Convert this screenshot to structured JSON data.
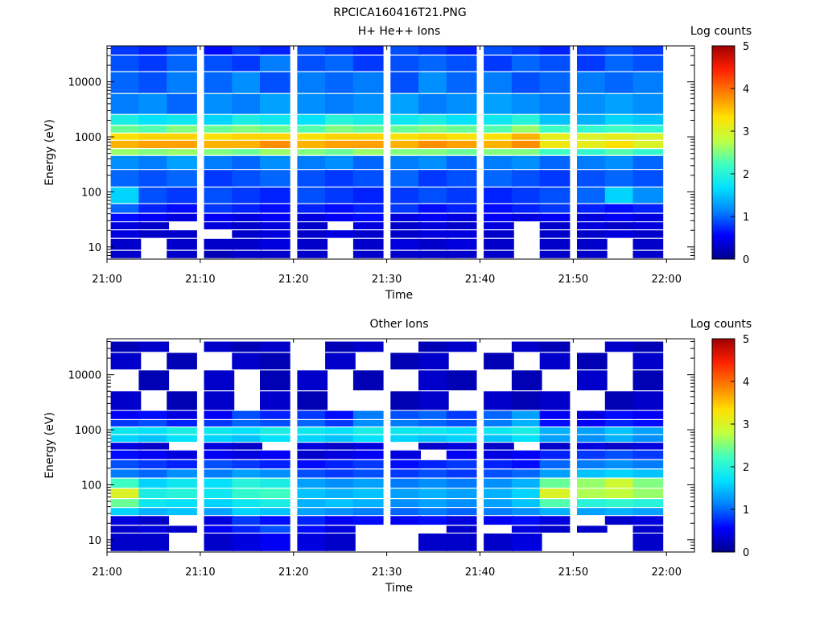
{
  "figure": {
    "title": "RPCICA160416T21.PNG"
  },
  "palette": [
    "#00008c",
    "#0000ff",
    "#0080ff",
    "#00e0ff",
    "#40ffc0",
    "#c0ff40",
    "#ffe000",
    "#ff8000",
    "#ff2000",
    "#a00000"
  ],
  "chart_data": [
    {
      "type": "heatmap",
      "title": "H+ He++ Ions",
      "xlabel": "Time",
      "ylabel": "Energy (eV)",
      "colorbar_label": "Log counts",
      "colorbar_ticks": [
        "0",
        "1",
        "2",
        "3",
        "4",
        "5"
      ],
      "color_range": [
        0,
        5
      ],
      "y_scale": "log",
      "y_range_eV": [
        6,
        45000
      ],
      "x_range": [
        "21:00",
        "22:03"
      ],
      "x_ticks": [
        "21:00",
        "21:10",
        "21:20",
        "21:30",
        "21:40",
        "21:50",
        "22:00"
      ],
      "y_ticks": [
        "10",
        "100",
        "1000",
        "10000"
      ],
      "time_bins": [
        "21:02",
        "21:05",
        "21:08",
        "21:12",
        "21:15",
        "21:18",
        "21:22",
        "21:25",
        "21:28",
        "21:32",
        "21:35",
        "21:38",
        "21:42",
        "21:45",
        "21:48",
        "21:52",
        "21:55",
        "21:58"
      ],
      "energy_bands": [
        {
          "e_low": 30000,
          "e_high": 45000,
          "log_counts": [
            0.8,
            0.7,
            0.9,
            0.6,
            0.8,
            0.7,
            0.9,
            0.8,
            0.7,
            0.9,
            0.8,
            0.7,
            0.9,
            0.8,
            0.7,
            0.8,
            0.9,
            0.8
          ]
        },
        {
          "e_low": 15000,
          "e_high": 30000,
          "log_counts": [
            0.9,
            0.8,
            1.0,
            0.9,
            0.8,
            1.1,
            0.9,
            1.0,
            0.8,
            0.9,
            1.0,
            0.9,
            0.8,
            1.0,
            0.9,
            0.8,
            1.0,
            0.9
          ]
        },
        {
          "e_low": 6000,
          "e_high": 15000,
          "log_counts": [
            1.0,
            0.9,
            1.1,
            1.0,
            1.2,
            0.9,
            1.1,
            1.0,
            1.1,
            0.9,
            1.2,
            1.0,
            1.1,
            0.9,
            1.0,
            1.1,
            1.0,
            1.1
          ]
        },
        {
          "e_low": 2500,
          "e_high": 6000,
          "log_counts": [
            1.1,
            1.2,
            1.0,
            1.2,
            1.1,
            1.3,
            1.2,
            1.1,
            1.2,
            1.3,
            1.1,
            1.2,
            1.3,
            1.2,
            1.1,
            1.2,
            1.3,
            1.2
          ]
        },
        {
          "e_low": 1600,
          "e_high": 2500,
          "log_counts": [
            1.9,
            1.7,
            1.8,
            1.6,
            1.9,
            1.8,
            1.7,
            2.0,
            1.9,
            1.8,
            1.9,
            1.7,
            1.8,
            2.0,
            1.5,
            1.4,
            1.6,
            1.5
          ]
        },
        {
          "e_low": 1150,
          "e_high": 1600,
          "log_counts": [
            2.4,
            2.3,
            2.5,
            2.4,
            2.5,
            2.4,
            2.3,
            2.5,
            2.4,
            2.4,
            2.5,
            2.4,
            2.3,
            2.6,
            2.2,
            2.1,
            2.2,
            2.1
          ]
        },
        {
          "e_low": 850,
          "e_high": 1150,
          "log_counts": [
            3.3,
            3.4,
            3.4,
            3.3,
            3.4,
            3.4,
            3.3,
            3.4,
            3.4,
            3.3,
            3.4,
            3.3,
            3.3,
            3.6,
            3.1,
            3.0,
            3.1,
            3.0
          ]
        },
        {
          "e_low": 600,
          "e_high": 850,
          "log_counts": [
            3.6,
            3.7,
            3.7,
            3.6,
            3.6,
            3.8,
            3.6,
            3.7,
            3.7,
            3.6,
            3.8,
            3.7,
            3.6,
            3.8,
            3.2,
            3.1,
            3.3,
            3.0
          ]
        },
        {
          "e_low": 450,
          "e_high": 600,
          "log_counts": [
            2.6,
            2.5,
            2.6,
            2.5,
            2.4,
            2.6,
            2.5,
            2.4,
            2.6,
            2.5,
            2.5,
            2.4,
            2.5,
            2.5,
            2.2,
            2.1,
            2.3,
            2.1
          ]
        },
        {
          "e_low": 250,
          "e_high": 450,
          "log_counts": [
            1.2,
            1.1,
            1.3,
            1.1,
            1.0,
            1.2,
            1.1,
            1.2,
            1.0,
            1.1,
            1.2,
            1.0,
            1.1,
            1.2,
            1.0,
            1.1,
            1.2,
            1.0
          ]
        },
        {
          "e_low": 120,
          "e_high": 250,
          "log_counts": [
            1.0,
            0.9,
            1.0,
            0.8,
            0.9,
            1.0,
            0.9,
            0.8,
            0.9,
            1.0,
            0.8,
            0.9,
            1.0,
            0.9,
            0.8,
            0.9,
            1.0,
            0.9
          ]
        },
        {
          "e_low": 60,
          "e_high": 120,
          "log_counts": [
            1.6,
            0.9,
            0.8,
            0.9,
            0.8,
            0.7,
            0.9,
            0.8,
            0.7,
            0.8,
            0.9,
            0.8,
            0.7,
            0.8,
            0.9,
            1.0,
            1.6,
            1.2
          ]
        },
        {
          "e_low": 40,
          "e_high": 60,
          "log_counts": [
            1.0,
            0.7,
            0.6,
            0.8,
            0.7,
            0.6,
            0.7,
            0.6,
            0.7,
            0.8,
            0.6,
            0.7,
            0.6,
            0.7,
            0.8,
            0.7,
            0.6,
            0.7
          ]
        },
        {
          "e_low": 28,
          "e_high": 40,
          "log_counts": [
            0.6,
            0.5,
            0.4,
            0.5,
            0.4,
            0.5,
            0.4,
            0.5,
            0.6,
            0.4,
            0.5,
            0.4,
            0.5,
            0.4,
            0.5,
            0.4,
            0.5,
            0.4
          ]
        },
        {
          "e_low": 20,
          "e_high": 28,
          "log_counts": [
            0.4,
            0.3,
            0.0,
            0.4,
            0.3,
            0.4,
            0.3,
            0.0,
            0.4,
            0.3,
            0.4,
            0.3,
            0.4,
            0.0,
            0.3,
            0.4,
            0.3,
            0.4
          ]
        },
        {
          "e_low": 14,
          "e_high": 20,
          "log_counts": [
            0.4,
            0.3,
            0.3,
            0.0,
            0.3,
            0.4,
            0.3,
            0.4,
            0.3,
            0.3,
            0.4,
            0.4,
            0.3,
            0.0,
            0.3,
            0.3,
            0.4,
            0.3
          ]
        },
        {
          "e_low": 8.5,
          "e_high": 14,
          "log_counts": [
            0.3,
            0.0,
            0.3,
            0.3,
            0.3,
            0.4,
            0.3,
            0.0,
            0.3,
            0.4,
            0.3,
            0.4,
            0.3,
            0.0,
            0.3,
            0.3,
            0.0,
            0.3
          ]
        },
        {
          "e_low": 6,
          "e_high": 8.5,
          "log_counts": [
            0.3,
            0.0,
            0.3,
            0.2,
            0.3,
            0.3,
            0.3,
            0.0,
            0.3,
            0.3,
            0.3,
            0.3,
            0.3,
            0.0,
            0.3,
            0.3,
            0.0,
            0.3
          ]
        }
      ]
    },
    {
      "type": "heatmap",
      "title": "Other Ions",
      "xlabel": "Time",
      "ylabel": "Energy (eV)",
      "colorbar_label": "Log counts",
      "colorbar_ticks": [
        "0",
        "1",
        "2",
        "3",
        "4",
        "5"
      ],
      "color_range": [
        0,
        5
      ],
      "y_scale": "log",
      "y_range_eV": [
        6,
        45000
      ],
      "x_range": [
        "21:00",
        "22:03"
      ],
      "x_ticks": [
        "21:00",
        "21:10",
        "21:20",
        "21:30",
        "21:40",
        "21:50",
        "22:00"
      ],
      "y_ticks": [
        "10",
        "100",
        "1000",
        "10000"
      ],
      "time_bins": [
        "21:02",
        "21:05",
        "21:08",
        "21:12",
        "21:15",
        "21:18",
        "21:22",
        "21:25",
        "21:28",
        "21:32",
        "21:35",
        "21:38",
        "21:42",
        "21:45",
        "21:48",
        "21:52",
        "21:55",
        "21:58"
      ],
      "energy_bands": [
        {
          "e_low": 25000,
          "e_high": 40000,
          "log_counts": [
            0.2,
            0.3,
            0.0,
            0.3,
            0.2,
            0.3,
            0.0,
            0.2,
            0.3,
            0.0,
            0.2,
            0.3,
            0.0,
            0.3,
            0.2,
            0.0,
            0.3,
            0.2
          ]
        },
        {
          "e_low": 12000,
          "e_high": 25000,
          "log_counts": [
            0.3,
            0.0,
            0.2,
            0.0,
            0.3,
            0.2,
            0.0,
            0.3,
            0.0,
            0.2,
            0.3,
            0.0,
            0.2,
            0.0,
            0.3,
            0.2,
            0.0,
            0.3
          ]
        },
        {
          "e_low": 5000,
          "e_high": 12000,
          "log_counts": [
            0.0,
            0.2,
            0.0,
            0.3,
            0.0,
            0.2,
            0.3,
            0.0,
            0.2,
            0.0,
            0.3,
            0.2,
            0.0,
            0.2,
            0.0,
            0.3,
            0.0,
            0.2
          ]
        },
        {
          "e_low": 2200,
          "e_high": 5000,
          "log_counts": [
            0.3,
            0.0,
            0.2,
            0.3,
            0.0,
            0.3,
            0.2,
            0.0,
            0.0,
            0.2,
            0.3,
            0.0,
            0.3,
            0.2,
            0.3,
            0.0,
            0.2,
            0.3
          ]
        },
        {
          "e_low": 1500,
          "e_high": 2200,
          "log_counts": [
            0.5,
            0.6,
            0.4,
            0.5,
            0.9,
            0.7,
            0.8,
            0.6,
            1.1,
            0.9,
            1.0,
            0.8,
            1.0,
            1.3,
            0.5,
            0.4,
            0.6,
            0.5
          ]
        },
        {
          "e_low": 1100,
          "e_high": 1500,
          "log_counts": [
            0.8,
            0.9,
            0.7,
            0.8,
            1.0,
            0.9,
            1.0,
            0.8,
            1.2,
            1.1,
            1.0,
            0.9,
            1.1,
            1.4,
            0.6,
            0.5,
            0.7,
            0.6
          ]
        },
        {
          "e_low": 800,
          "e_high": 1100,
          "log_counts": [
            1.8,
            1.7,
            1.9,
            1.8,
            1.7,
            1.9,
            1.8,
            1.7,
            1.9,
            1.8,
            1.8,
            1.7,
            1.8,
            1.9,
            1.4,
            1.3,
            1.5,
            1.3
          ]
        },
        {
          "e_low": 580,
          "e_high": 800,
          "log_counts": [
            1.6,
            1.5,
            1.7,
            1.6,
            1.5,
            1.7,
            1.6,
            1.5,
            1.7,
            1.6,
            1.5,
            1.6,
            1.5,
            1.7,
            1.3,
            1.2,
            1.4,
            1.2
          ]
        },
        {
          "e_low": 420,
          "e_high": 580,
          "log_counts": [
            0.4,
            0.3,
            0.0,
            0.4,
            0.3,
            0.0,
            0.4,
            0.3,
            0.4,
            0.0,
            0.3,
            0.4,
            0.3,
            0.0,
            0.3,
            0.4,
            0.3,
            0.4
          ]
        },
        {
          "e_low": 280,
          "e_high": 420,
          "log_counts": [
            0.6,
            0.5,
            0.4,
            0.5,
            0.4,
            0.5,
            0.3,
            0.4,
            0.5,
            0.4,
            0.0,
            0.5,
            0.4,
            0.5,
            0.7,
            0.8,
            0.9,
            0.8
          ]
        },
        {
          "e_low": 190,
          "e_high": 280,
          "log_counts": [
            0.9,
            0.8,
            0.7,
            0.9,
            0.8,
            0.7,
            0.6,
            0.7,
            0.8,
            0.6,
            0.7,
            0.8,
            0.7,
            0.6,
            1.0,
            1.1,
            1.2,
            1.1
          ]
        },
        {
          "e_low": 130,
          "e_high": 190,
          "log_counts": [
            1.1,
            1.0,
            1.2,
            1.1,
            1.3,
            1.2,
            0.9,
            0.8,
            0.9,
            0.8,
            0.9,
            0.8,
            0.9,
            1.0,
            1.3,
            1.5,
            1.6,
            1.5
          ]
        },
        {
          "e_low": 85,
          "e_high": 130,
          "log_counts": [
            2.2,
            1.6,
            1.8,
            1.7,
            2.0,
            1.9,
            1.3,
            1.2,
            1.3,
            1.1,
            1.2,
            1.1,
            1.2,
            1.4,
            2.4,
            2.6,
            2.9,
            2.5
          ]
        },
        {
          "e_low": 55,
          "e_high": 85,
          "log_counts": [
            3.0,
            1.9,
            2.0,
            1.8,
            2.1,
            2.2,
            1.5,
            1.4,
            1.5,
            1.3,
            1.4,
            1.3,
            1.4,
            1.6,
            3.0,
            2.7,
            2.8,
            2.6
          ]
        },
        {
          "e_low": 38,
          "e_high": 55,
          "log_counts": [
            2.4,
            1.8,
            1.7,
            1.6,
            1.8,
            1.9,
            1.4,
            1.5,
            1.4,
            1.2,
            1.3,
            1.2,
            1.3,
            1.5,
            2.3,
            2.0,
            2.1,
            2.0
          ]
        },
        {
          "e_low": 27,
          "e_high": 38,
          "log_counts": [
            1.6,
            1.4,
            1.5,
            1.3,
            1.6,
            1.5,
            1.3,
            1.2,
            1.1,
            1.0,
            1.1,
            1.0,
            1.1,
            1.2,
            1.4,
            1.3,
            1.4,
            1.3
          ]
        },
        {
          "e_low": 18,
          "e_high": 27,
          "log_counts": [
            0.4,
            0.3,
            0.0,
            0.4,
            0.8,
            0.6,
            0.7,
            0.5,
            0.6,
            0.5,
            0.6,
            0.4,
            0.5,
            0.6,
            0.4,
            0.0,
            0.3,
            0.4
          ]
        },
        {
          "e_low": 13,
          "e_high": 18,
          "log_counts": [
            0.3,
            0.4,
            0.3,
            0.5,
            0.7,
            0.9,
            0.6,
            0.4,
            0.0,
            0.0,
            0.0,
            0.3,
            0.0,
            0.4,
            0.3,
            0.3,
            0.0,
            0.3
          ]
        },
        {
          "e_low": 6,
          "e_high": 13,
          "log_counts": [
            0.3,
            0.3,
            0.0,
            0.3,
            0.4,
            0.5,
            0.4,
            0.3,
            0.0,
            0.0,
            0.3,
            0.3,
            0.3,
            0.4,
            0.0,
            0.0,
            0.0,
            0.3
          ]
        }
      ]
    }
  ]
}
